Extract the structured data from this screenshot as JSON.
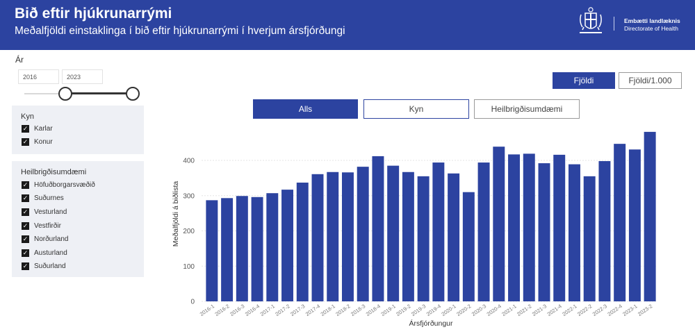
{
  "header": {
    "title": "Bið eftir hjúkrunarrými",
    "subtitle": "Meðalfjöldi einstaklinga í bið eftir hjúkrunarrými í hverjum ársfjórðungi",
    "logo_line1": "Embætti landlæknis",
    "logo_line2": "Directorate of Health"
  },
  "filters": {
    "year_label": "Ár",
    "year_from": "2016",
    "year_to": "2023",
    "sex": {
      "title": "Kyn",
      "items": [
        "Karlar",
        "Konur"
      ]
    },
    "region": {
      "title": "Heilbrigðisumdæmi",
      "items": [
        "Höfuðborgarsvæðið",
        "Suðurnes",
        "Vesturland",
        "Vestfirðir",
        "Norðurland",
        "Austurland",
        "Suðurland"
      ]
    }
  },
  "buttons": {
    "count": "Fjöldi",
    "per_1000": "Fjöldi/1.000",
    "all": "Alls",
    "sex": "Kyn",
    "region": "Heilbrigðisumdæmi"
  },
  "colors": {
    "brand": "#2c43a0",
    "bar": "#2c43a0"
  },
  "chart_data": {
    "type": "bar",
    "xlabel": "Ársfjórðungur",
    "ylabel": "Meðalfjöldi á biðlista",
    "ylim": [
      0,
      480
    ],
    "yticks": [
      0,
      100,
      200,
      300,
      400
    ],
    "grid": true,
    "categories": [
      "2016-1",
      "2016-2",
      "2016-3",
      "2016-4",
      "2017-1",
      "2017-2",
      "2017-3",
      "2017-4",
      "2018-1",
      "2018-2",
      "2018-3",
      "2018-4",
      "2019-1",
      "2019-2",
      "2019-3",
      "2019-4",
      "2020-1",
      "2020-2",
      "2020-3",
      "2020-4",
      "2021-1",
      "2021-2",
      "2021-3",
      "2021-4",
      "2022-1",
      "2022-2",
      "2022-3",
      "2022-4",
      "2023-1",
      "2023-2"
    ],
    "values": [
      287,
      293,
      299,
      296,
      307,
      317,
      337,
      361,
      367,
      366,
      382,
      412,
      385,
      367,
      355,
      394,
      363,
      310,
      394,
      439,
      417,
      419,
      392,
      416,
      389,
      355,
      398,
      447,
      431,
      481
    ]
  }
}
